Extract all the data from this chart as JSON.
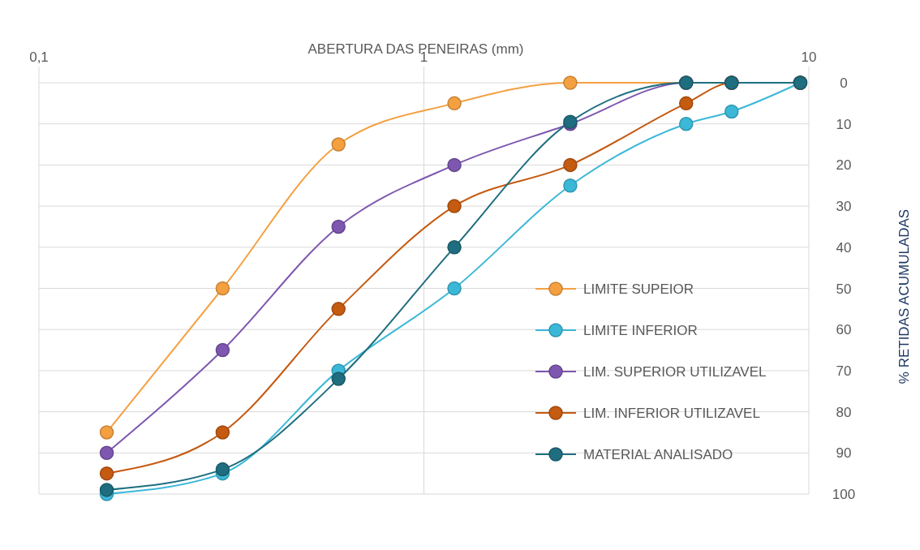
{
  "chart_data": {
    "type": "line",
    "xlabel": "ABERTURA DAS PENEIRAS (mm)",
    "ylabel": "% RETIDAS ACUMULADAS",
    "log": "x",
    "x": [
      0.15,
      0.3,
      0.6,
      1.2,
      2.4,
      4.8,
      6.3,
      9.5
    ],
    "xlim": [
      0.1,
      10
    ],
    "xticks": [
      {
        "value": 0.1,
        "label": "0,1"
      },
      1,
      10
    ],
    "ylim": [
      100,
      0
    ],
    "yticks": [
      0,
      10,
      20,
      30,
      40,
      50,
      60,
      70,
      80,
      90,
      100
    ],
    "grid": true,
    "legend": "right",
    "marker": "circle",
    "line_style": "solid",
    "series": [
      {
        "name": "LIMITE SUPEIOR",
        "color": "#f4a041",
        "values": [
          85,
          50,
          15,
          5,
          0,
          0,
          0,
          0
        ]
      },
      {
        "name": "LIMITE INFERIOR",
        "color": "#3bb8d8",
        "values": [
          100,
          95,
          70,
          50,
          25,
          10,
          7,
          0
        ]
      },
      {
        "name": "LIM. SUPERIOR UTILIZAVEL",
        "color": "#7e57b0",
        "values": [
          90,
          65,
          35,
          20,
          10,
          0,
          0,
          0
        ]
      },
      {
        "name": "LIM. INFERIOR UTILIZAVEL",
        "color": "#c55a11",
        "values": [
          95,
          85,
          55,
          30,
          20,
          5,
          0,
          0
        ]
      },
      {
        "name": "MATERIAL ANALISADO",
        "color": "#1f6e80",
        "values": [
          99,
          94,
          72,
          40,
          9.5,
          0,
          0,
          0
        ]
      }
    ]
  }
}
